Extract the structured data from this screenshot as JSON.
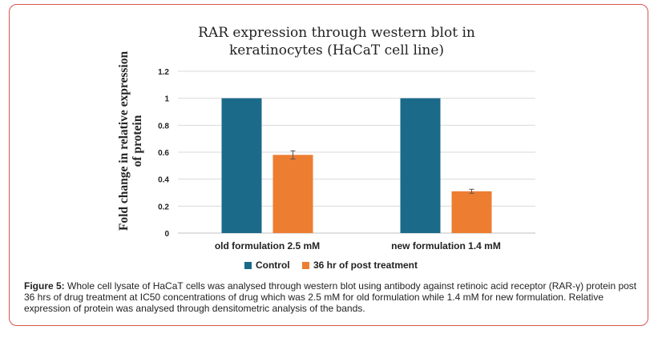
{
  "chart_data": {
    "type": "bar",
    "title": "RAR expression through western blot in keratinocytes (HaCaT cell line)",
    "ylabel": "Fold change in relative expression of protein",
    "xlabel": "",
    "categories": [
      "old formulation 2.5 mM",
      "new formulation 1.4 mM"
    ],
    "series": [
      {
        "name": "Control",
        "values": [
          1,
          1
        ],
        "errors": [
          0,
          0
        ],
        "color": "#1b6a8a"
      },
      {
        "name": "36 hr of post treatment",
        "values": [
          0.58,
          0.31
        ],
        "errors": [
          0.03,
          0.015
        ],
        "color": "#ed7d31"
      }
    ],
    "ylim": [
      0,
      1.2
    ],
    "yticks": [
      "0",
      "0.2",
      "0.4",
      "0.6",
      "0.8",
      "1",
      "1.2"
    ],
    "grid": true,
    "legend_position": "bottom"
  },
  "caption": {
    "label": "Figure 5:",
    "text": " Whole cell lysate of HaCaT cells was analysed through western blot using antibody against retinoic acid receptor (RAR-γ) protein post 36 hrs of drug treatment at IC50 concentrations of drug which was 2.5 mM for old formulation while 1.4 mM for new formulation. Relative expression of protein was analysed through densitometric analysis of the bands."
  }
}
